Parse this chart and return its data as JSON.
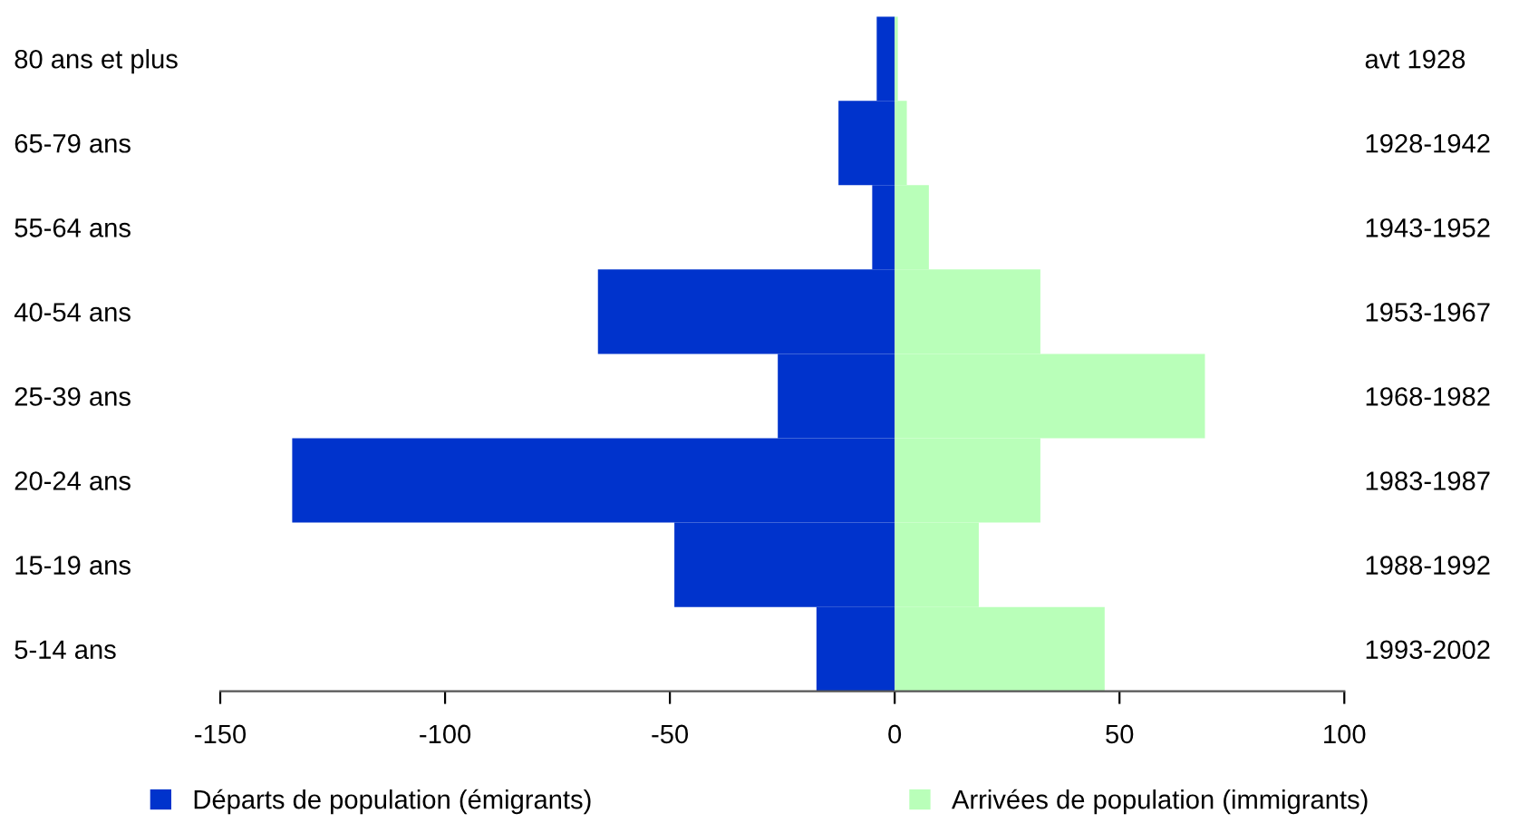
{
  "chart_data": {
    "type": "bar",
    "orientation": "horizontal",
    "categories": [
      "80 ans et plus",
      "65-79 ans",
      "55-64 ans",
      "40-54 ans",
      "25-39 ans",
      "20-24 ans",
      "15-19 ans",
      "5-14 ans"
    ],
    "y2_categories": [
      "avt 1928",
      "1928-1942",
      "1943-1952",
      "1953-1967",
      "1968-1982",
      "1983-1987",
      "1988-1992",
      "1993-2002"
    ],
    "series": [
      {
        "name": "Départs de population (émigrants)",
        "color": "#0033cc",
        "values": [
          -4,
          -12.5,
          -5,
          -66,
          -26,
          -134,
          -49,
          -17.4
        ]
      },
      {
        "name": "Arrivées de population (immigrants)",
        "color": "#b9ffb9",
        "values": [
          0.7,
          2.7,
          7.6,
          32.4,
          69,
          32.4,
          18.7,
          46.7
        ]
      }
    ],
    "xlim": [
      -150,
      100
    ],
    "xticks": [
      -150,
      -100,
      -50,
      0,
      50,
      100
    ],
    "stacked": true,
    "grid": false,
    "legend": "bottom"
  }
}
